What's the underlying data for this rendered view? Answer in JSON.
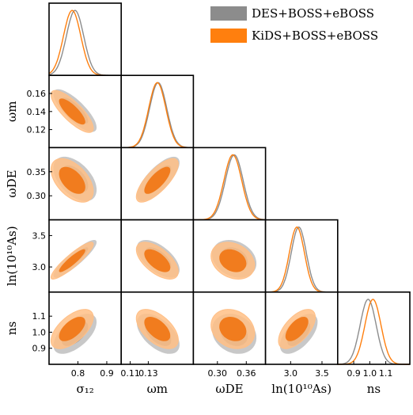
{
  "colors": {
    "des": "#8c8c8c",
    "des_fill_outer": "#c8c8c8",
    "des_fill_inner": "#8e8e8e",
    "kids": "#ff7f0e",
    "kids_fill_outer": "#ffbf86",
    "kids_fill_inner": "#f07818"
  },
  "legend": {
    "placement": "top-right",
    "entries": [
      {
        "label": "DES+BOSS+eBOSS",
        "color": "#8c8c8c"
      },
      {
        "label": "KiDS+BOSS+eBOSS",
        "color": "#ff7f0e"
      }
    ]
  },
  "chart_data": {
    "type": "corner",
    "series": [
      {
        "name": "DES+BOSS+eBOSS",
        "means": {
          "sigma12": 0.79,
          "omega_m": 0.141,
          "omega_DE": 0.335,
          "lnAs": 3.13,
          "ns": 0.99
        }
      },
      {
        "name": "KiDS+BOSS+eBOSS",
        "means": {
          "sigma12": 0.78,
          "omega_m": 0.14,
          "omega_DE": 0.332,
          "lnAs": 3.1,
          "ns": 1.02
        }
      }
    ],
    "parameters": [
      {
        "key": "sigma12",
        "label": "σ₁₂",
        "range": [
          0.7,
          0.95
        ],
        "ticks": [
          0.8,
          0.9
        ],
        "tick_labels": [
          "0.8",
          "0.9"
        ]
      },
      {
        "key": "omega_m",
        "label": "ωm",
        "range": [
          0.1,
          0.18
        ],
        "ticks": [
          0.11,
          0.13
        ],
        "tick_labels": [
          "0.11",
          "0.13"
        ]
      },
      {
        "key": "omega_DE",
        "label": "ωDE",
        "range": [
          0.25,
          0.4
        ],
        "ticks": [
          0.3,
          0.36
        ],
        "tick_labels": [
          "0.30",
          "0.36"
        ]
      },
      {
        "key": "lnAs",
        "label": "ln(10¹⁰As)",
        "range": [
          2.6,
          3.75
        ],
        "ticks": [
          3.0,
          3.5
        ],
        "tick_labels": [
          "3.0",
          "3.5"
        ]
      },
      {
        "key": "ns",
        "label": "ns",
        "range": [
          0.8,
          1.25
        ],
        "ticks": [
          0.9,
          1.0,
          1.1
        ],
        "tick_labels": [
          "0.9",
          "1.0",
          "1.1"
        ]
      }
    ],
    "y_ticks": {
      "omega_m": {
        "ticks": [
          0.12,
          0.14,
          0.16
        ],
        "tick_labels": [
          "0.12",
          "0.14",
          "0.16"
        ]
      },
      "omega_DE": {
        "ticks": [
          0.3,
          0.35
        ],
        "tick_labels": [
          "0.30",
          "0.35"
        ]
      },
      "lnAs": {
        "ticks": [
          3.0,
          3.5
        ],
        "tick_labels": [
          "3.0",
          "3.5"
        ]
      },
      "ns": {
        "ticks": [
          0.9,
          1.0,
          1.1
        ],
        "tick_labels": [
          "0.9",
          "1.0",
          "1.1"
        ]
      }
    },
    "grid": false
  }
}
